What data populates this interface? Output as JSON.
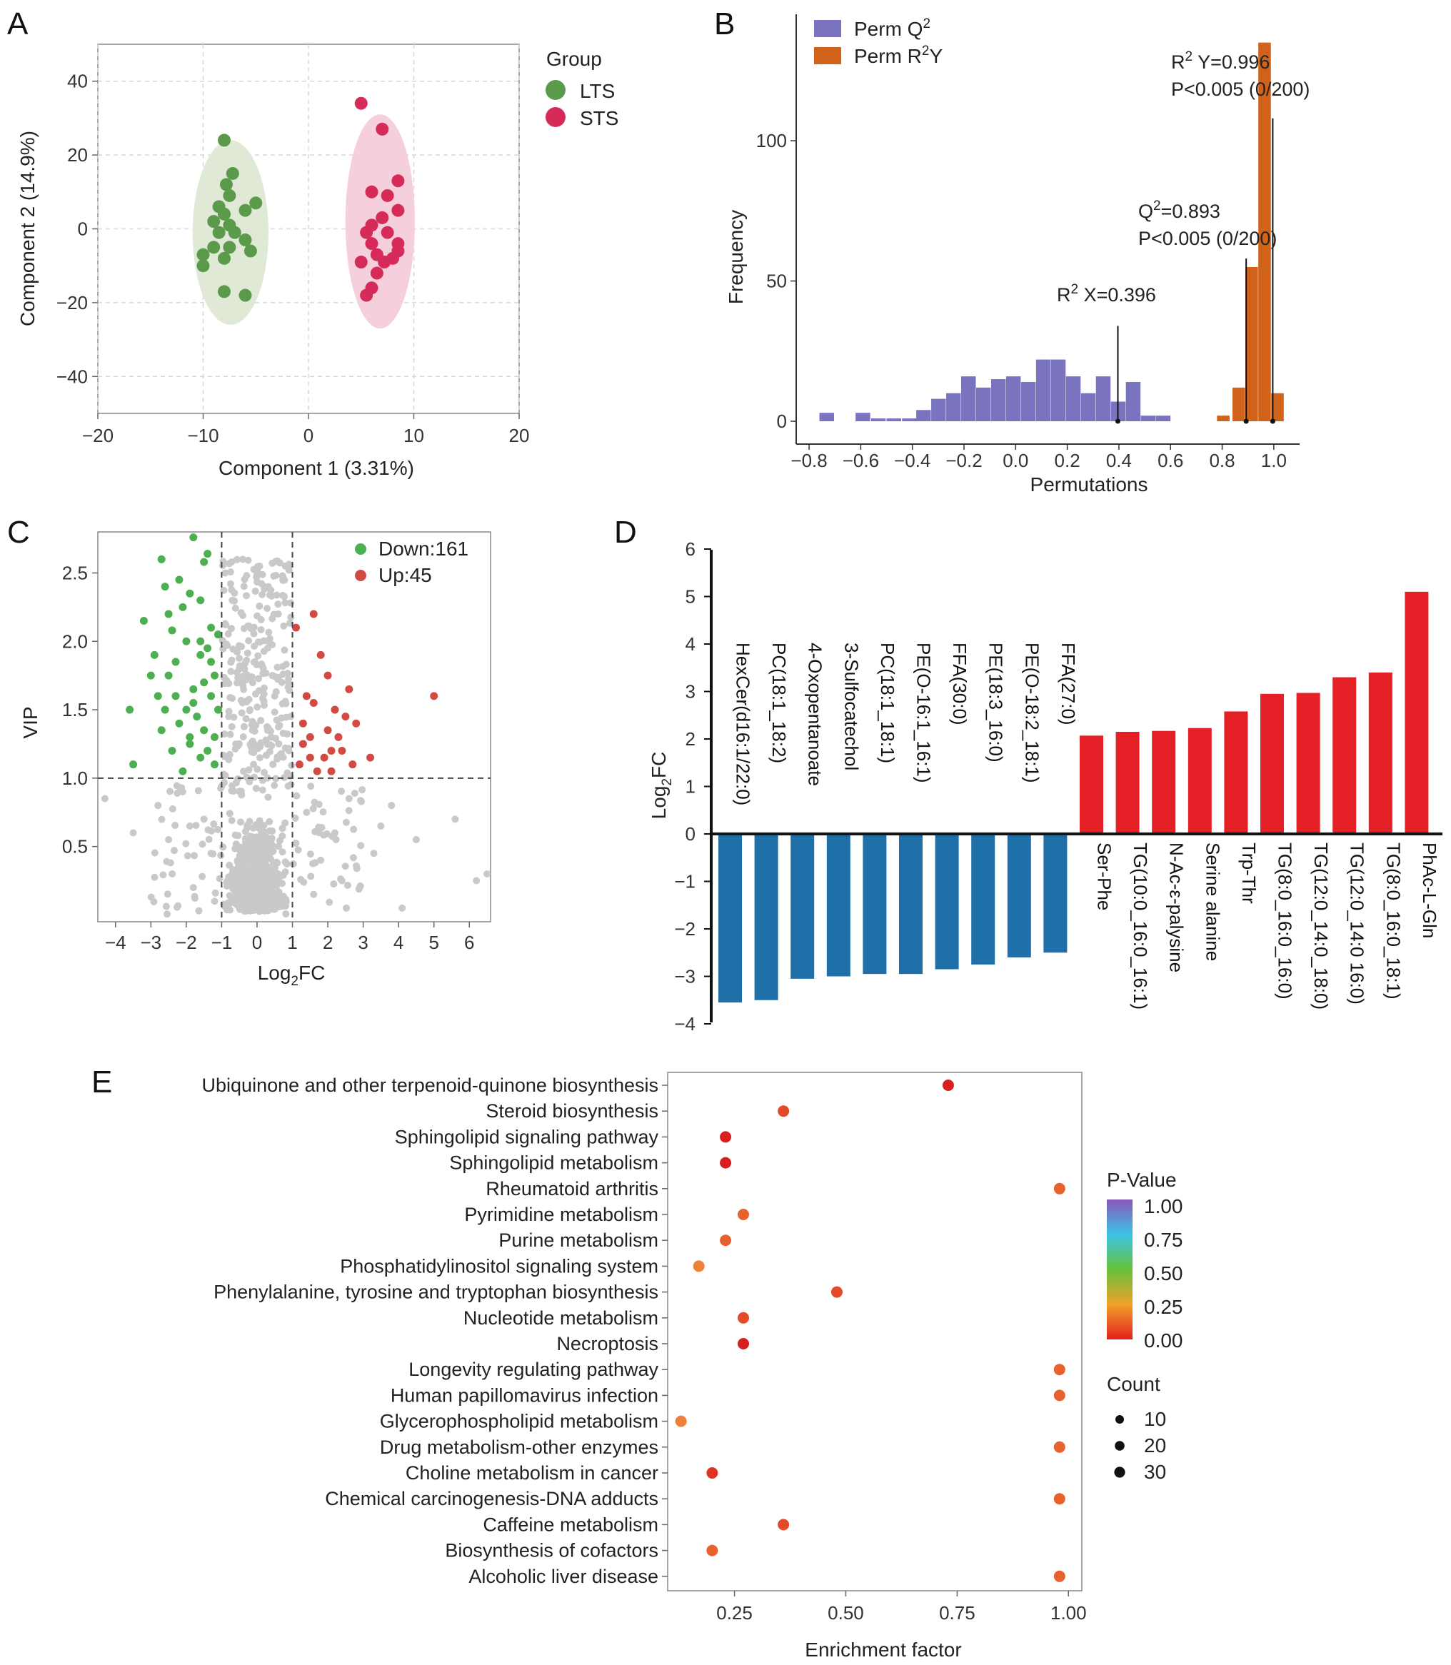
{
  "panels": {
    "A": "A",
    "B": "B",
    "C": "C",
    "D": "D",
    "E": "E"
  },
  "colors": {
    "lts": "#5a9a4a",
    "sts": "#d62b58",
    "lts_ellipse": "#dfe9d6",
    "sts_ellipse": "#f6cfdc",
    "permQ2": "#7a73c0",
    "permR2Y": "#d0621a",
    "down": "#4caf50",
    "up": "#d24b42",
    "ns": "#c9c9c9",
    "bar_up": "#e41f26",
    "bar_down": "#1f6fa8"
  },
  "chart_data": [
    {
      "id": "A",
      "type": "scatter",
      "title": "",
      "xlabel": "Component 1 (3.31%)",
      "ylabel": "Component 2 (14.9%)",
      "xlim": [
        -20,
        20
      ],
      "ylim": [
        -50,
        50
      ],
      "xticks": [
        "−20",
        "−10",
        "0",
        "10",
        "20"
      ],
      "yticks": [
        "40",
        "20",
        "0",
        "−20",
        "−40"
      ],
      "legend_title": "Group",
      "series": [
        {
          "name": "LTS",
          "points": [
            [
              -8,
              24
            ],
            [
              -7.8,
              12
            ],
            [
              -7.2,
              15
            ],
            [
              -7.5,
              9
            ],
            [
              -8.5,
              6
            ],
            [
              -8,
              4
            ],
            [
              -5,
              7
            ],
            [
              -6,
              5
            ],
            [
              -9,
              2
            ],
            [
              -7.5,
              1
            ],
            [
              -7,
              -1
            ],
            [
              -8.5,
              -1
            ],
            [
              -6,
              -3
            ],
            [
              -9,
              -5
            ],
            [
              -7.5,
              -5
            ],
            [
              -8,
              -8
            ],
            [
              -10,
              -7
            ],
            [
              -10,
              -10
            ],
            [
              -5.5,
              -6
            ],
            [
              -8,
              -17
            ],
            [
              -6,
              -18
            ]
          ]
        },
        {
          "name": "STS",
          "points": [
            [
              5,
              34
            ],
            [
              7,
              27
            ],
            [
              7.5,
              9
            ],
            [
              8.5,
              13
            ],
            [
              6,
              10
            ],
            [
              8.5,
              5
            ],
            [
              7,
              3
            ],
            [
              6,
              1
            ],
            [
              5.5,
              -1
            ],
            [
              7.5,
              -1
            ],
            [
              6,
              -4
            ],
            [
              8.5,
              -4
            ],
            [
              8.5,
              -6
            ],
            [
              6.5,
              -7
            ],
            [
              5,
              -9
            ],
            [
              7.2,
              -9
            ],
            [
              8,
              -8
            ],
            [
              6.5,
              -12
            ],
            [
              6,
              -16
            ],
            [
              5.5,
              -18
            ]
          ]
        }
      ]
    },
    {
      "id": "B",
      "type": "bar",
      "xlabel": "Permutations",
      "ylabel": "Frequency",
      "xlim": [
        -0.85,
        1.1
      ],
      "ylim": [
        0,
        140
      ],
      "xticks": [
        "−0.8",
        "−0.6",
        "−0.4",
        "−0.2",
        "0.0",
        "0.2",
        "0.4",
        "0.6",
        "0.8",
        "1.0"
      ],
      "yticks": [
        "0",
        "50",
        "100"
      ],
      "bin_width": 0.058,
      "series": [
        {
          "name": "Perm Q2",
          "legend_base": "Perm Q",
          "legend_sup": "2",
          "bin_starts": [
            -0.76,
            -0.62,
            -0.56,
            -0.5,
            -0.44,
            -0.385,
            -0.327,
            -0.269,
            -0.211,
            -0.153,
            -0.095,
            -0.037,
            0.021,
            0.079,
            0.137,
            0.195,
            0.253,
            0.311,
            0.369,
            0.427,
            0.485,
            0.543
          ],
          "values": [
            3,
            3,
            1,
            1,
            1,
            4,
            8,
            10,
            16,
            12,
            15,
            16,
            14,
            22,
            22,
            16,
            10,
            16,
            7,
            14,
            2,
            2
          ]
        },
        {
          "name": "Perm R2Y",
          "legend_base": "Perm R",
          "legend_sup": "2",
          "legend_suffix": "Y",
          "bin_starts": [
            0.78,
            0.84,
            0.89,
            0.94,
            0.99
          ],
          "values": [
            2,
            12,
            55,
            135,
            10
          ]
        }
      ],
      "annotations": [
        {
          "pre": "R",
          "sup": "2",
          "post": " Y=0.996",
          "line2": "P<0.005 (0/200)",
          "value": 0.996,
          "height": 108
        },
        {
          "pre": "Q",
          "sup": "2",
          "post": "=0.893",
          "line2": "P<0.005 (0/200)",
          "value": 0.893,
          "height": 58
        },
        {
          "pre": "R",
          "sup": "2",
          "post": " X=0.396",
          "line2": "",
          "value": 0.396,
          "height": 34
        }
      ]
    },
    {
      "id": "C",
      "type": "scatter",
      "xlabel_base": "Log",
      "xlabel_sub": "2",
      "xlabel_post": "FC",
      "ylabel": "VIP",
      "xlim": [
        -4.5,
        6.6
      ],
      "ylim": [
        -0.05,
        2.8
      ],
      "xticks": [
        "−4",
        "−3",
        "−2",
        "−1",
        "0",
        "1",
        "2",
        "3",
        "4",
        "5",
        "6"
      ],
      "yticks": [
        "2.5",
        "2.0",
        "1.5",
        "1.0",
        "0.5"
      ],
      "thresholds": {
        "x": [
          -1,
          1
        ],
        "y": 1.0
      },
      "legend": [
        {
          "name": "Down:161"
        },
        {
          "name": "Up:45"
        }
      ],
      "down_points": [
        [
          -1.8,
          2.76
        ],
        [
          -1.4,
          2.64
        ],
        [
          -1.5,
          2.58
        ],
        [
          -2.7,
          2.6
        ],
        [
          -2.6,
          2.4
        ],
        [
          -2.2,
          2.45
        ],
        [
          -2.5,
          2.2
        ],
        [
          -2.4,
          2.08
        ],
        [
          -2.1,
          2.25
        ],
        [
          -1.9,
          2.35
        ],
        [
          -1.6,
          2.3
        ],
        [
          -3.2,
          2.15
        ],
        [
          -3.6,
          1.5
        ],
        [
          -3.5,
          1.1
        ],
        [
          -3.0,
          1.75
        ],
        [
          -2.8,
          1.6
        ],
        [
          -2.6,
          1.5
        ],
        [
          -2.5,
          1.75
        ],
        [
          -2.3,
          1.85
        ],
        [
          -2.2,
          1.4
        ],
        [
          -1.6,
          1.9
        ],
        [
          -1.5,
          1.7
        ],
        [
          -1.3,
          1.6
        ],
        [
          -1.2,
          1.3
        ],
        [
          -1.2,
          1.1
        ],
        [
          -1.6,
          1.15
        ],
        [
          -1.9,
          1.25
        ],
        [
          -2.0,
          1.5
        ],
        [
          -1.8,
          1.65
        ],
        [
          -2.1,
          1.05
        ],
        [
          -1.4,
          1.95
        ],
        [
          -1.1,
          2.05
        ],
        [
          -1.3,
          2.1
        ],
        [
          -2.4,
          1.2
        ],
        [
          -2.9,
          1.9
        ],
        [
          -1.7,
          1.45
        ],
        [
          -1.5,
          1.35
        ],
        [
          -1.1,
          1.5
        ],
        [
          -1.3,
          1.85
        ],
        [
          -2.0,
          2.0
        ],
        [
          -1.8,
          1.55
        ],
        [
          -1.4,
          1.2
        ],
        [
          -1.9,
          1.3
        ],
        [
          -2.3,
          1.6
        ],
        [
          -1.2,
          1.75
        ],
        [
          -2.7,
          1.35
        ],
        [
          -1.6,
          2.0
        ]
      ],
      "up_points": [
        [
          1.1,
          2.1
        ],
        [
          1.3,
          1.4
        ],
        [
          1.5,
          1.3
        ],
        [
          1.6,
          2.2
        ],
        [
          1.8,
          1.9
        ],
        [
          2.0,
          1.35
        ],
        [
          2.1,
          1.2
        ],
        [
          2.2,
          1.5
        ],
        [
          2.3,
          1.3
        ],
        [
          1.5,
          1.15
        ],
        [
          1.2,
          1.1
        ],
        [
          1.7,
          1.05
        ],
        [
          2.5,
          1.45
        ],
        [
          2.6,
          1.65
        ],
        [
          2.8,
          1.4
        ],
        [
          3.2,
          1.15
        ],
        [
          5.0,
          1.6
        ],
        [
          1.9,
          1.15
        ],
        [
          1.4,
          1.6
        ],
        [
          2.0,
          1.75
        ],
        [
          2.4,
          1.2
        ],
        [
          1.6,
          1.55
        ],
        [
          2.7,
          1.1
        ],
        [
          1.3,
          1.25
        ],
        [
          2.1,
          1.05
        ]
      ],
      "ns_points": [
        [
          -4.3,
          0.85
        ],
        [
          -3.5,
          0.6
        ],
        [
          -2.8,
          0.8
        ],
        [
          -2.5,
          0.55
        ],
        [
          -2.1,
          0.9
        ],
        [
          -1.8,
          0.2
        ],
        [
          -1.5,
          0.7
        ],
        [
          -1.2,
          0.1
        ],
        [
          -1.3,
          0.45
        ],
        [
          -1.9,
          0.65
        ],
        [
          -2.4,
          0.3
        ],
        [
          3.8,
          0.8
        ],
        [
          4.1,
          0.05
        ],
        [
          4.5,
          0.55
        ],
        [
          5.6,
          0.7
        ],
        [
          6.2,
          0.25
        ],
        [
          6.5,
          0.3
        ],
        [
          3.3,
          0.45
        ],
        [
          2.9,
          0.2
        ],
        [
          3.5,
          0.65
        ],
        [
          2.6,
          0.85
        ],
        [
          1.8,
          0.4
        ],
        [
          2.2,
          0.6
        ],
        [
          1.4,
          0.75
        ],
        [
          1.6,
          0.15
        ],
        [
          2.4,
          0.25
        ],
        [
          -0.9,
          2.5
        ],
        [
          -0.7,
          2.3
        ],
        [
          -0.4,
          2.6
        ],
        [
          0.2,
          2.4
        ],
        [
          0.6,
          2.2
        ],
        [
          0.8,
          2.55
        ],
        [
          0.3,
          1.95
        ],
        [
          -0.5,
          1.8
        ],
        [
          0.7,
          1.7
        ],
        [
          -0.2,
          1.5
        ],
        [
          0.4,
          1.3
        ],
        [
          -0.8,
          1.45
        ],
        [
          0.9,
          1.2
        ],
        [
          -0.1,
          1.1
        ],
        [
          0.5,
          1.6
        ],
        [
          -0.6,
          1.25
        ]
      ],
      "ns_cloud": {
        "center_x": 0.0,
        "spread_x": 0.6,
        "dense_vip_max": 1.0,
        "n": 900
      }
    },
    {
      "id": "D",
      "type": "bar",
      "ylabel_base": "Log",
      "ylabel_sub": "2",
      "ylabel_post": "FC",
      "ylim": [
        -4,
        6
      ],
      "yticks": [
        "6",
        "5",
        "4",
        "3",
        "2",
        "1",
        "0",
        "−1",
        "−2",
        "−3",
        "−4"
      ],
      "categories": [
        "HexCer(d16:1/22:0)",
        "PC(18:1_18:2)",
        "4-Oxopentanoate",
        "3-Sulfocatechol",
        "PC(18:1_18:1)",
        "PE(O-16:1_16:1)",
        "FFA(30:0)",
        "PE(18:3_16:0)",
        "PE(O-18:2_18:1)",
        "FFA(27:0)",
        "Ser-Phe",
        "TG(10:0_16:0_16:1)",
        "N-Ac-ε-palysine",
        "Serine alanine",
        "Trp-Thr",
        "TG(8:0_16:0_16:0)",
        "TG(12:0_14:0_18:0)",
        "TG(12:0_14:0 16:0)",
        "TG(8:0_16:0_18:1)",
        "PhAc-L-Gln"
      ],
      "values": [
        -3.55,
        -3.5,
        -3.05,
        -3.0,
        -2.95,
        -2.95,
        -2.85,
        -2.75,
        -2.6,
        -2.5,
        2.07,
        2.15,
        2.17,
        2.23,
        2.58,
        2.95,
        2.97,
        3.3,
        3.4,
        5.1
      ]
    },
    {
      "id": "E",
      "type": "scatter",
      "xlabel": "Enrichment factor",
      "xlim": [
        0.1,
        1.03
      ],
      "xticks": [
        "0.25",
        "0.50",
        "0.75",
        "1.00"
      ],
      "categories": [
        "Ubiquinone and other terpenoid-quinone biosynthesis",
        "Steroid biosynthesis",
        "Sphingolipid signaling pathway",
        "Sphingolipid metabolism",
        "Rheumatoid arthritis",
        "Pyrimidine metabolism",
        "Purine metabolism",
        "Phosphatidylinositol signaling system",
        "Phenylalanine, tyrosine and tryptophan biosynthesis",
        "Nucleotide metabolism",
        "Necroptosis",
        "Longevity regulating pathway",
        "Human papillomavirus infection",
        "Glycerophospholipid metabolism",
        "Drug metabolism-other enzymes",
        "Choline metabolism in cancer",
        "Chemical carcinogenesis-DNA adducts",
        "Caffeine metabolism",
        "Biosynthesis of cofactors",
        "Alcoholic liver disease"
      ],
      "enrichment": [
        0.73,
        0.36,
        0.23,
        0.23,
        0.98,
        0.27,
        0.23,
        0.17,
        0.48,
        0.27,
        0.27,
        0.98,
        0.98,
        0.13,
        0.98,
        0.2,
        0.98,
        0.36,
        0.2,
        0.98
      ],
      "pvalue": [
        0.02,
        0.12,
        0.01,
        0.01,
        0.16,
        0.14,
        0.16,
        0.22,
        0.1,
        0.1,
        0.005,
        0.14,
        0.14,
        0.24,
        0.14,
        0.06,
        0.14,
        0.1,
        0.16,
        0.14
      ],
      "colorbar_title": "P-Value",
      "colorbar_ticks": [
        "1.00",
        "0.75",
        "0.50",
        "0.25",
        "0.00"
      ],
      "size_title": "Count",
      "size_ticks": [
        "10",
        "20",
        "30"
      ]
    }
  ]
}
